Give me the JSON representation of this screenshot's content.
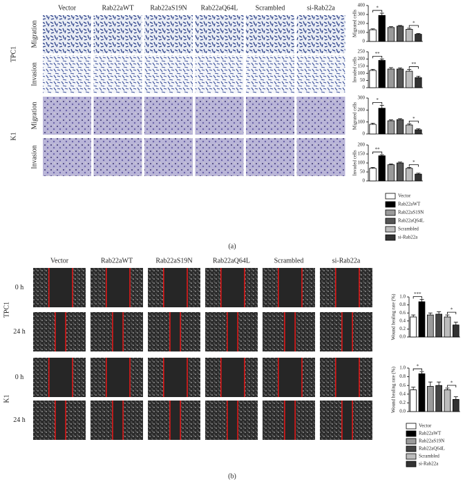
{
  "panel_a": {
    "label": "(a)",
    "columns": [
      "Vector",
      "Rab22aWT",
      "Rab22aS19N",
      "Rab22aQ64L",
      "Scrambled",
      "si-Rab22a"
    ],
    "groups": [
      {
        "name": "TPC1",
        "rows": [
          "Migration",
          "Invasion"
        ]
      },
      {
        "name": "K1",
        "rows": [
          "Migration",
          "Invasion"
        ]
      }
    ],
    "legend": [
      {
        "name": "Vector",
        "color": "#ffffff"
      },
      {
        "name": "Rab22aWT",
        "color": "#000000"
      },
      {
        "name": "Rab22aS19N",
        "color": "#9a9a9a"
      },
      {
        "name": "Rab22aQ64L",
        "color": "#555555"
      },
      {
        "name": "Scrambled",
        "color": "#bdbdbd"
      },
      {
        "name": "si-Rab22a",
        "color": "#333333"
      }
    ]
  },
  "panel_b": {
    "label": "(b)",
    "columns": [
      "Vector",
      "Rab22aWT",
      "Rab22aS19N",
      "Rab22aQ64L",
      "Scrambled",
      "si-Rab22a"
    ],
    "groups": [
      {
        "name": "TPC1",
        "rows": [
          "0 h",
          "24 h"
        ]
      },
      {
        "name": "K1",
        "rows": [
          "0 h",
          "24 h"
        ]
      }
    ],
    "legend": [
      {
        "name": "Vector",
        "color": "#ffffff"
      },
      {
        "name": "Rab22aWT",
        "color": "#000000"
      },
      {
        "name": "Rab22aS19N",
        "color": "#9a9a9a"
      },
      {
        "name": "Rab22aQ64L",
        "color": "#444444"
      },
      {
        "name": "Scrambled",
        "color": "#bdbdbd"
      },
      {
        "name": "si-Rab22a",
        "color": "#333333"
      }
    ]
  },
  "chart_data": [
    {
      "type": "bar",
      "ylabel": "Migrated cells",
      "values": [
        130,
        290,
        155,
        170,
        135,
        80
      ],
      "errors": [
        10,
        25,
        10,
        8,
        12,
        8
      ],
      "colors": [
        "#ffffff",
        "#000000",
        "#9a9a9a",
        "#555555",
        "#bdbdbd",
        "#333333"
      ],
      "ylim": [
        0,
        400
      ],
      "yticks": [
        0,
        100,
        200,
        300,
        400
      ],
      "annotations": [
        {
          "text": "*",
          "pair": [
            0,
            1
          ]
        },
        {
          "text": "*",
          "pair": [
            4,
            5
          ]
        }
      ]
    },
    {
      "type": "bar",
      "ylabel": "Invaded cells",
      "values": [
        120,
        190,
        130,
        130,
        115,
        70
      ],
      "errors": [
        8,
        10,
        10,
        8,
        12,
        10
      ],
      "colors": [
        "#ffffff",
        "#000000",
        "#9a9a9a",
        "#555555",
        "#bdbdbd",
        "#333333"
      ],
      "ylim": [
        0,
        250
      ],
      "yticks": [
        0,
        50,
        100,
        150,
        200,
        250
      ],
      "annotations": [
        {
          "text": "**",
          "pair": [
            0,
            1
          ]
        },
        {
          "text": "**",
          "pair": [
            4,
            5
          ]
        }
      ]
    },
    {
      "type": "bar",
      "ylabel": "Migrated cells",
      "values": [
        80,
        215,
        110,
        120,
        75,
        35
      ],
      "errors": [
        10,
        25,
        8,
        8,
        10,
        8
      ],
      "colors": [
        "#ffffff",
        "#000000",
        "#9a9a9a",
        "#555555",
        "#bdbdbd",
        "#333333"
      ],
      "ylim": [
        0,
        300
      ],
      "yticks": [
        0,
        100,
        200,
        300
      ],
      "annotations": [
        {
          "text": "*",
          "pair": [
            0,
            1
          ]
        },
        {
          "text": "*",
          "pair": [
            4,
            5
          ]
        }
      ]
    },
    {
      "type": "bar",
      "ylabel": "Invaded cells",
      "values": [
        70,
        140,
        90,
        100,
        70,
        38
      ],
      "errors": [
        5,
        6,
        5,
        5,
        5,
        5
      ],
      "colors": [
        "#ffffff",
        "#000000",
        "#9a9a9a",
        "#555555",
        "#bdbdbd",
        "#333333"
      ],
      "ylim": [
        0,
        200
      ],
      "yticks": [
        0,
        50,
        100,
        150,
        200
      ],
      "annotations": [
        {
          "text": "**",
          "pair": [
            0,
            1
          ]
        },
        {
          "text": "*",
          "pair": [
            4,
            5
          ]
        }
      ]
    },
    {
      "type": "bar",
      "ylabel": "Wound healing rate (%)",
      "values": [
        0.5,
        0.88,
        0.55,
        0.57,
        0.5,
        0.3
      ],
      "errors": [
        0.05,
        0.06,
        0.05,
        0.06,
        0.05,
        0.07
      ],
      "colors": [
        "#ffffff",
        "#000000",
        "#9a9a9a",
        "#444444",
        "#bdbdbd",
        "#333333"
      ],
      "ylim": [
        0,
        1
      ],
      "yticks": [
        {
          "value": 0,
          "label": "0.0"
        },
        {
          "value": 0.2,
          "label": "0.2"
        },
        {
          "value": 0.4,
          "label": "0.4"
        },
        {
          "value": 0.6,
          "label": "0.6"
        },
        {
          "value": 0.8,
          "label": "0.8"
        },
        {
          "value": 1,
          "label": "1.0"
        }
      ],
      "annotations": [
        {
          "text": "***",
          "pair": [
            0,
            1
          ]
        },
        {
          "text": "*",
          "pair": [
            4,
            5
          ]
        }
      ]
    },
    {
      "type": "bar",
      "ylabel": "Wound healing rate (%)",
      "values": [
        0.5,
        0.87,
        0.58,
        0.6,
        0.5,
        0.28
      ],
      "errors": [
        0.06,
        0.05,
        0.1,
        0.08,
        0.04,
        0.06
      ],
      "colors": [
        "#ffffff",
        "#000000",
        "#9a9a9a",
        "#444444",
        "#bdbdbd",
        "#333333"
      ],
      "ylim": [
        0,
        1
      ],
      "yticks": [
        {
          "value": 0,
          "label": "0.0"
        },
        {
          "value": 0.2,
          "label": "0.2"
        },
        {
          "value": 0.4,
          "label": "0.4"
        },
        {
          "value": 0.6,
          "label": "0.6"
        },
        {
          "value": 0.8,
          "label": "0.8"
        },
        {
          "value": 1,
          "label": "1.0"
        }
      ],
      "annotations": [
        {
          "text": "*",
          "pair": [
            0,
            1
          ]
        },
        {
          "text": "*",
          "pair": [
            4,
            5
          ]
        }
      ]
    }
  ]
}
